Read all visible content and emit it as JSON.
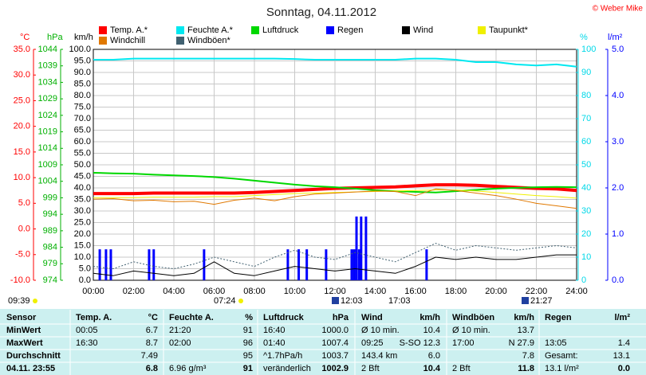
{
  "chart_data": {
    "type": "line",
    "title": "Sonntag, 04.11.2012",
    "credit": "© Weber Mike",
    "xlim": [
      0,
      24
    ],
    "xticks": [
      {
        "value": 0,
        "label": "00:00"
      },
      {
        "value": 2,
        "label": "02:00"
      },
      {
        "value": 4,
        "label": "04:00"
      },
      {
        "value": 6,
        "label": "06:00"
      },
      {
        "value": 8,
        "label": "08:00"
      },
      {
        "value": 10,
        "label": "10:00"
      },
      {
        "value": 12,
        "label": "12:00"
      },
      {
        "value": 14,
        "label": "14:00"
      },
      {
        "value": 16,
        "label": "16:00"
      },
      {
        "value": 18,
        "label": "18:00"
      },
      {
        "value": 20,
        "label": "20:00"
      },
      {
        "value": 22,
        "label": "22:00"
      },
      {
        "value": 24,
        "label": "24:00"
      }
    ],
    "grid": true,
    "axes": {
      "temp": {
        "label": "°C",
        "color": "#ff0000",
        "lim": [
          -10,
          35
        ],
        "ticks": [
          {
            "value": -10,
            "label": "-10.0"
          },
          {
            "value": -5,
            "label": "-5.0"
          },
          {
            "value": 0,
            "label": "0.0"
          },
          {
            "value": 5,
            "label": "5.0"
          },
          {
            "value": 10,
            "label": "10.0"
          },
          {
            "value": 15,
            "label": "15.0"
          },
          {
            "value": 20,
            "label": "20.0"
          },
          {
            "value": 25,
            "label": "25.0"
          },
          {
            "value": 30,
            "label": "30.0"
          },
          {
            "value": 35,
            "label": "35.0"
          }
        ]
      },
      "press": {
        "label": "hPa",
        "color": "#00b000",
        "lim": [
          974,
          1044
        ],
        "ticks": [
          974,
          979,
          984,
          989,
          994,
          999,
          1004,
          1009,
          1014,
          1019,
          1024,
          1029,
          1034,
          1039,
          1044
        ]
      },
      "wind": {
        "label": "km/h",
        "color": "#000000",
        "lim": [
          0,
          100
        ],
        "ticks": [
          {
            "value": 0,
            "label": "0.0"
          },
          {
            "value": 5,
            "label": "5.0"
          },
          {
            "value": 10,
            "label": "10.0"
          },
          {
            "value": 15,
            "label": "15.0"
          },
          {
            "value": 20,
            "label": "20.0"
          },
          {
            "value": 25,
            "label": "25.0"
          },
          {
            "value": 30,
            "label": "30.0"
          },
          {
            "value": 35,
            "label": "35.0"
          },
          {
            "value": 40,
            "label": "40.0"
          },
          {
            "value": 45,
            "label": "45.0"
          },
          {
            "value": 50,
            "label": "50.0"
          },
          {
            "value": 55,
            "label": "55.0"
          },
          {
            "value": 60,
            "label": "60.0"
          },
          {
            "value": 65,
            "label": "65.0"
          },
          {
            "value": 70,
            "label": "70.0"
          },
          {
            "value": 75,
            "label": "75.0"
          },
          {
            "value": 80,
            "label": "80.0"
          },
          {
            "value": 85,
            "label": "85.0"
          },
          {
            "value": 90,
            "label": "90.0"
          },
          {
            "value": 95,
            "label": "95.0"
          },
          {
            "value": 100,
            "label": "100.0"
          }
        ]
      },
      "hum": {
        "label": "%",
        "color": "#00d8e8",
        "lim": [
          0,
          100
        ],
        "ticks": [
          0,
          10,
          20,
          30,
          40,
          50,
          60,
          70,
          80,
          90,
          100
        ]
      },
      "rain": {
        "label": "l/m²",
        "color": "#0000ff",
        "lim": [
          0,
          5
        ],
        "ticks": [
          {
            "value": 0,
            "label": "0.0"
          },
          {
            "value": 1,
            "label": "1.0"
          },
          {
            "value": 2,
            "label": "2.0"
          },
          {
            "value": 3,
            "label": "3.0"
          },
          {
            "value": 4,
            "label": "4.0"
          },
          {
            "value": 5,
            "label": "5.0"
          }
        ]
      }
    },
    "x": [
      0,
      1,
      2,
      3,
      4,
      5,
      6,
      7,
      8,
      9,
      10,
      11,
      12,
      13,
      14,
      15,
      16,
      17,
      18,
      19,
      20,
      21,
      22,
      23,
      24
    ],
    "series": [
      {
        "name": "Temp. A.*",
        "color": "#ff0000",
        "axis": "temp",
        "values": [
          6.9,
          6.9,
          6.9,
          7.0,
          7.0,
          7.0,
          7.0,
          7.0,
          7.1,
          7.3,
          7.5,
          7.7,
          7.9,
          8.0,
          8.1,
          8.2,
          8.4,
          8.6,
          8.6,
          8.5,
          8.3,
          8.1,
          7.9,
          7.8,
          7.5
        ]
      },
      {
        "name": "Feuchte A.*",
        "color": "#00e8f0",
        "axis": "hum",
        "values": [
          95.5,
          95.5,
          96,
          96,
          96,
          96,
          96,
          96,
          96,
          96,
          95.8,
          95.5,
          95.5,
          95.5,
          95.5,
          95.5,
          96,
          96,
          95.5,
          94.5,
          94.5,
          93.5,
          93,
          93.5,
          92.5
        ]
      },
      {
        "name": "Luftdruck",
        "color": "#00d800",
        "axis": "press",
        "values": [
          1006.6,
          1006.4,
          1006.3,
          1006,
          1005.8,
          1005.6,
          1005.3,
          1004.8,
          1004.2,
          1003.6,
          1003,
          1002.5,
          1002.2,
          1001.8,
          1001.3,
          1001,
          1000.8,
          1000.6,
          1001,
          1001.4,
          1001.8,
          1002,
          1002.2,
          1002.3,
          1002.2
        ]
      },
      {
        "name": "Regen",
        "color": "#0000ff",
        "axis": "rain",
        "kind": "bars",
        "x": [
          0.32,
          0.63,
          0.87,
          2.77,
          3.0,
          5.5,
          9.66,
          10.2,
          10.6,
          11.56,
          12.83,
          12.95,
          13.07,
          13.2,
          13.3,
          13.54,
          16.55
        ],
        "values": [
          0.67,
          0.67,
          0.67,
          0.67,
          0.67,
          0.67,
          0.67,
          0.67,
          0.67,
          0.67,
          0.67,
          0.67,
          1.38,
          0.67,
          1.38,
          1.38,
          0.67
        ]
      },
      {
        "name": "Wind",
        "color": "#000000",
        "axis": "wind",
        "values": [
          3,
          2,
          4,
          3,
          2,
          3,
          8,
          3,
          2,
          4,
          6,
          5,
          4,
          5,
          4,
          3,
          6,
          10,
          9,
          10,
          9,
          9,
          10,
          11,
          11
        ]
      },
      {
        "name": "Taupunkt*",
        "color": "#f0f000",
        "axis": "temp",
        "values": [
          6.1,
          6.1,
          6.1,
          6.2,
          6.2,
          6.2,
          6.3,
          6.3,
          6.5,
          6.7,
          6.9,
          7.0,
          7.1,
          7.2,
          7.3,
          7.4,
          7.5,
          7.6,
          7.6,
          7.4,
          7.1,
          6.8,
          6.5,
          6.3,
          6.0
        ]
      },
      {
        "name": "Windchill",
        "color": "#e07800",
        "axis": "temp",
        "values": [
          5.8,
          5.9,
          5.5,
          5.6,
          5.3,
          5.4,
          4.8,
          5.6,
          6.0,
          5.5,
          6.3,
          6.8,
          7.0,
          7.2,
          7.4,
          7.3,
          6.5,
          7.8,
          7.5,
          7.0,
          6.5,
          5.8,
          5.0,
          4.5,
          4.0
        ]
      },
      {
        "name": "Windböen*",
        "color": "#406070",
        "axis": "wind",
        "dotted": true,
        "values": [
          6,
          5,
          8,
          6,
          5,
          7,
          10,
          8,
          6,
          10,
          13,
          10,
          9,
          12,
          10,
          8,
          12,
          16,
          13,
          15,
          14,
          13,
          14,
          15,
          14
        ]
      }
    ],
    "sun_moon_times": [
      "09:39",
      "07:24",
      "12:03",
      "17:03",
      "21:27"
    ]
  },
  "table": {
    "rows": [
      [
        "Sensor",
        "Temp. A.",
        "°C",
        "Feuchte A.",
        "%",
        "Luftdruck",
        "hPa",
        "Wind",
        "km/h",
        "Windböen",
        "km/h",
        "Regen",
        "l/m²"
      ],
      [
        "MinWert",
        "00:05",
        "6.7",
        "21:20",
        "91",
        "16:40",
        "1000.0",
        "Ø 10 min.",
        "10.4",
        "Ø 10 min.",
        "13.7",
        null,
        null
      ],
      [
        "MaxWert",
        "16:30",
        "8.7",
        "02:00",
        "96",
        "01:40",
        "1007.4",
        "09:25",
        "S-SO 12.3",
        "17:00",
        "N 27.9",
        "13:05",
        "1.4"
      ],
      [
        "Durchschnitt",
        null,
        "7.49",
        null,
        "95",
        "^1.7hPa/h",
        "1003.7",
        "143.4 km",
        "6.0",
        null,
        "7.8",
        "Gesamt:",
        "13.1"
      ],
      [
        "04.11. 23:55",
        null,
        "6.8",
        "6.96 g/m³",
        "91",
        "veränderlich",
        "1002.9",
        "2 Bft",
        "10.4",
        "2 Bft",
        "11.8",
        "13.1 l/m²",
        "0.0"
      ]
    ]
  }
}
